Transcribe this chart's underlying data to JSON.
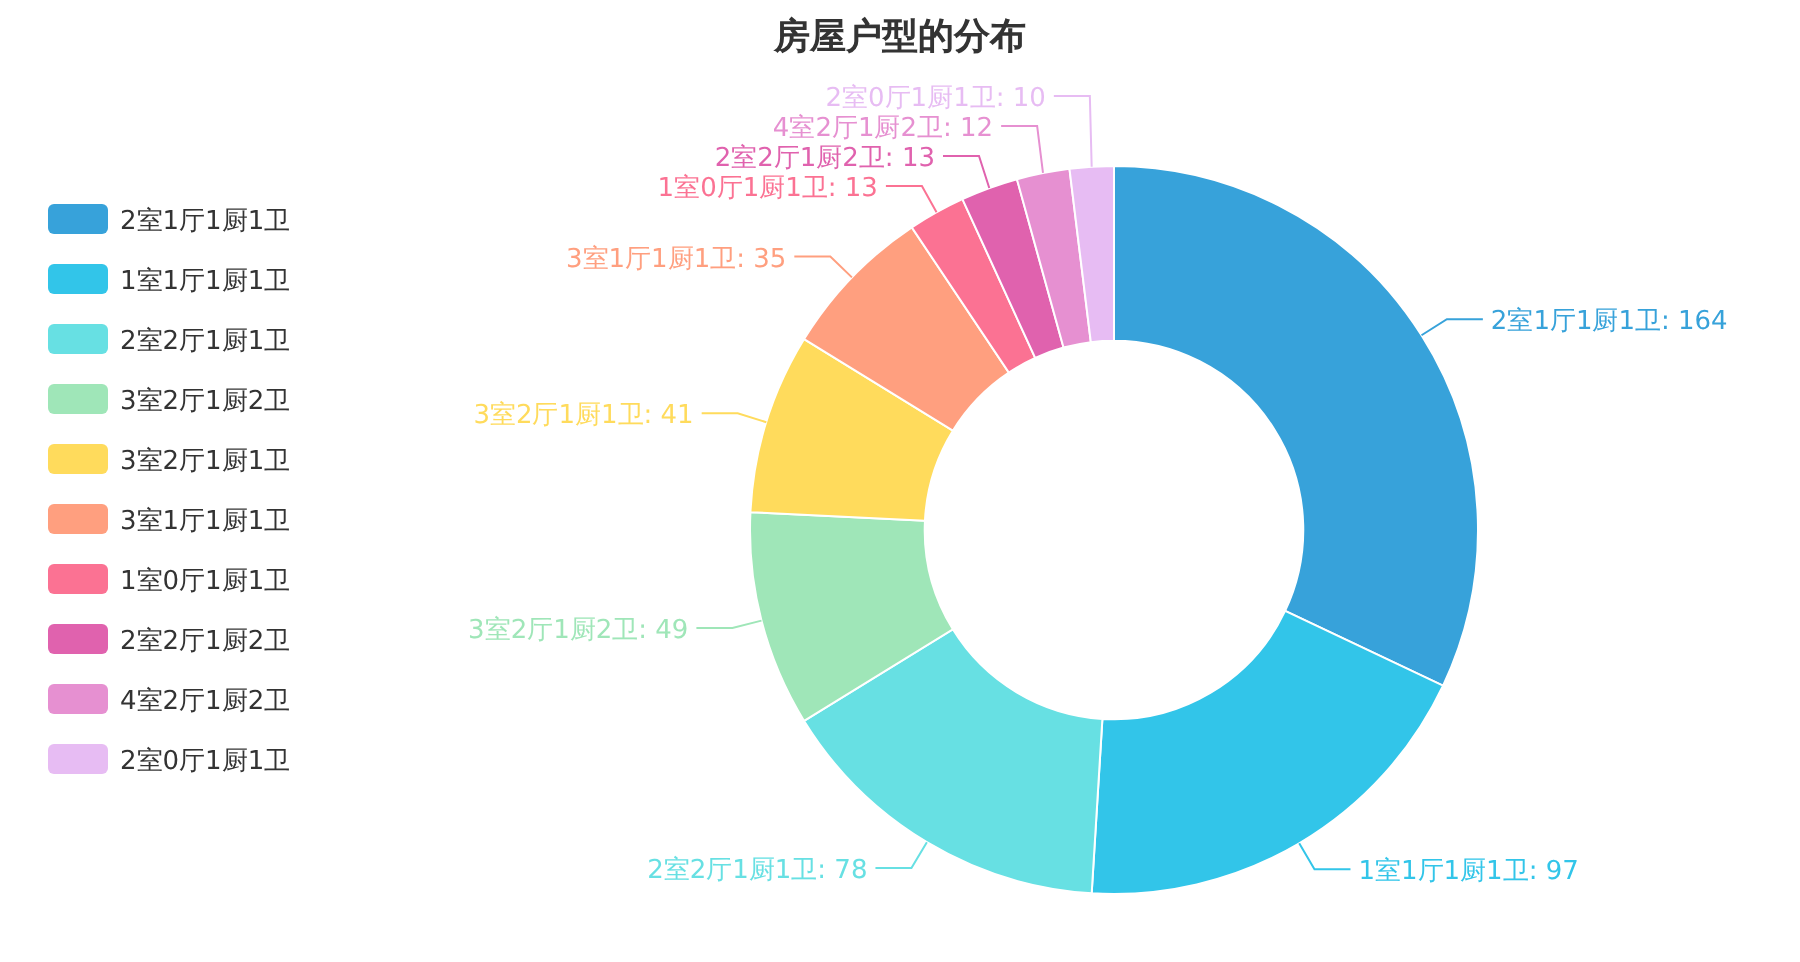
{
  "chart_data": {
    "type": "donut",
    "title": "房屋户型的分布",
    "categories": [
      "2室1厅1厨1卫",
      "1室1厅1厨1卫",
      "2室2厅1厨1卫",
      "3室2厅1厨2卫",
      "3室2厅1厨1卫",
      "3室1厅1厨1卫",
      "1室0厅1厨1卫",
      "2室2厅1厨2卫",
      "4室2厅1厨2卫",
      "2室0厅1厨1卫"
    ],
    "values": [
      164,
      97,
      78,
      49,
      41,
      35,
      13,
      13,
      12,
      10
    ],
    "colors": [
      "#37a2da",
      "#32c5e9",
      "#67e0e3",
      "#9fe6b8",
      "#ffdb5c",
      "#ff9f7f",
      "#fb7293",
      "#e062ae",
      "#e690d1",
      "#e7bcf3"
    ],
    "value_labels": [
      "2室1厅1厨1卫: 164",
      "1室1厅1厨1卫: 97",
      "2室2厅1厨1卫: 78",
      "3室2厅1厨2卫: 49",
      "3室2厅1厨1卫: 41",
      "3室1厅1厨1卫: 35",
      "1室0厅1厨1卫: 13",
      "2室2厅1厨2卫: 13",
      "4室2厅1厨2卫: 12",
      "2室0厅1厨1卫: 10"
    ],
    "legend": "left"
  }
}
